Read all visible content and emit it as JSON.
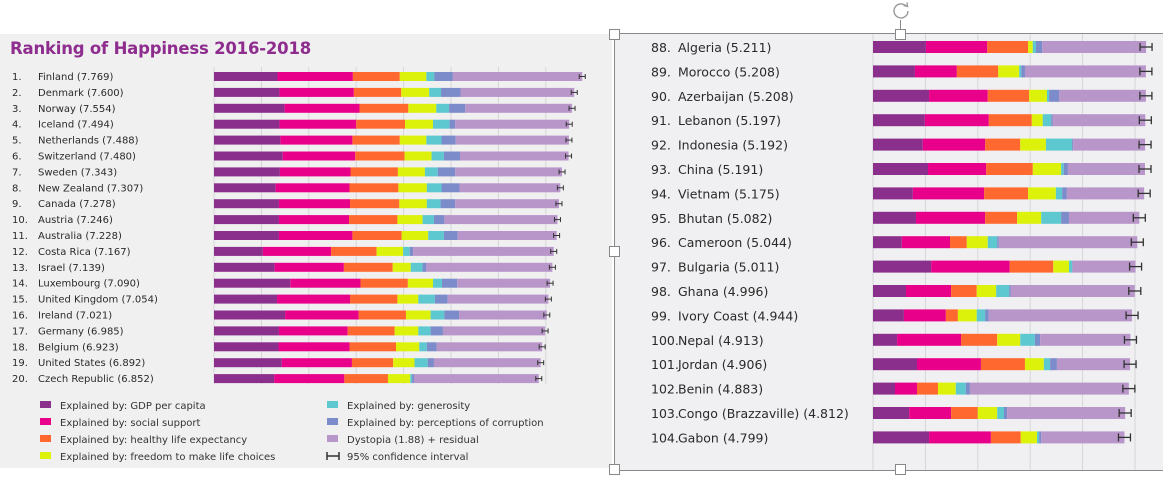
{
  "chart_data": [
    {
      "type": "bar",
      "orientation": "horizontal-stacked",
      "title": "Ranking of Happiness 2016-2018",
      "xlim": [
        0,
        8
      ],
      "grid": true,
      "legend_position": "bottom",
      "segments": [
        "Explained by: GDP per capita",
        "Explained by: social support",
        "Explained by: healthy life expectancy",
        "Explained by: freedom to make life choices",
        "Explained by: generosity",
        "Explained by: perceptions of corruption",
        "Dystopia (1.88) + residual"
      ],
      "rows": [
        {
          "label": "1.",
          "name": "Finland (7.769)",
          "total": 7.769,
          "values": [
            1.34,
            1.59,
            0.99,
            0.56,
            0.17,
            0.39
          ]
        },
        {
          "label": "2.",
          "name": "Denmark (7.600)",
          "total": 7.6,
          "values": [
            1.38,
            1.57,
            1.0,
            0.59,
            0.25,
            0.41
          ]
        },
        {
          "label": "3.",
          "name": "Norway (7.554)",
          "total": 7.554,
          "values": [
            1.49,
            1.58,
            1.03,
            0.59,
            0.27,
            0.34
          ]
        },
        {
          "label": "4.",
          "name": "Iceland (7.494)",
          "total": 7.494,
          "values": [
            1.38,
            1.62,
            1.03,
            0.59,
            0.35,
            0.12
          ]
        },
        {
          "label": "5.",
          "name": "Netherlands (7.488)",
          "total": 7.488,
          "values": [
            1.4,
            1.52,
            1.0,
            0.56,
            0.32,
            0.3
          ]
        },
        {
          "label": "6.",
          "name": "Switzerland (7.480)",
          "total": 7.48,
          "values": [
            1.45,
            1.53,
            1.04,
            0.57,
            0.26,
            0.34
          ]
        },
        {
          "label": "7.",
          "name": "Sweden (7.343)",
          "total": 7.343,
          "values": [
            1.39,
            1.49,
            1.0,
            0.57,
            0.27,
            0.37
          ]
        },
        {
          "label": "8.",
          "name": "New Zealand (7.307)",
          "total": 7.307,
          "values": [
            1.3,
            1.56,
            1.03,
            0.6,
            0.31,
            0.38
          ]
        },
        {
          "label": "9.",
          "name": "Canada (7.278)",
          "total": 7.278,
          "values": [
            1.37,
            1.5,
            1.04,
            0.58,
            0.29,
            0.31
          ]
        },
        {
          "label": "10.",
          "name": "Austria (7.246)",
          "total": 7.246,
          "values": [
            1.37,
            1.48,
            1.02,
            0.53,
            0.24,
            0.22
          ]
        },
        {
          "label": "11.",
          "name": "Australia (7.228)",
          "total": 7.228,
          "values": [
            1.37,
            1.55,
            1.04,
            0.56,
            0.33,
            0.29
          ]
        },
        {
          "label": "12.",
          "name": "Costa Rica (7.167)",
          "total": 7.167,
          "values": [
            1.03,
            1.44,
            0.96,
            0.56,
            0.14,
            0.07
          ]
        },
        {
          "label": "13.",
          "name": "Israel (7.139)",
          "total": 7.139,
          "values": [
            1.28,
            1.46,
            1.03,
            0.38,
            0.25,
            0.08
          ]
        },
        {
          "label": "14.",
          "name": "Luxembourg (7.090)",
          "total": 7.09,
          "values": [
            1.61,
            1.48,
            1.0,
            0.53,
            0.19,
            0.32
          ]
        },
        {
          "label": "15.",
          "name": "United Kingdom (7.054)",
          "total": 7.054,
          "values": [
            1.33,
            1.54,
            1.0,
            0.44,
            0.35,
            0.27
          ]
        },
        {
          "label": "16.",
          "name": "Ireland (7.021)",
          "total": 7.021,
          "values": [
            1.5,
            1.55,
            1.0,
            0.52,
            0.29,
            0.31
          ]
        },
        {
          "label": "17.",
          "name": "Germany (6.985)",
          "total": 6.985,
          "values": [
            1.37,
            1.45,
            0.99,
            0.5,
            0.26,
            0.26
          ]
        },
        {
          "label": "18.",
          "name": "Belgium (6.923)",
          "total": 6.923,
          "values": [
            1.36,
            1.5,
            0.98,
            0.49,
            0.16,
            0.21
          ]
        },
        {
          "label": "19.",
          "name": "United States (6.892)",
          "total": 6.892,
          "values": [
            1.43,
            1.48,
            0.87,
            0.45,
            0.28,
            0.13
          ]
        },
        {
          "label": "20.",
          "name": "Czech Republic (6.852)",
          "total": 6.852,
          "values": [
            1.27,
            1.48,
            0.92,
            0.47,
            0.04,
            0.04
          ]
        }
      ],
      "legend": [
        {
          "label": "Explained by: GDP per capita",
          "color": "#8b2f8c"
        },
        {
          "label": "Explained by: social support",
          "color": "#e8008a"
        },
        {
          "label": "Explained by: healthy life expectancy",
          "color": "#ff6930"
        },
        {
          "label": "Explained by: freedom to make life choices",
          "color": "#dcf20a"
        },
        {
          "label": "Explained by: generosity",
          "color": "#5ec8d0"
        },
        {
          "label": "Explained by: perceptions of corruption",
          "color": "#7c8bc9"
        },
        {
          "label": "Dystopia (1.88) + residual",
          "color": "#b896ca"
        },
        {
          "label": "95% confidence interval",
          "color": "#333333"
        }
      ]
    },
    {
      "type": "bar",
      "orientation": "horizontal-stacked",
      "title": "",
      "xlim": [
        0,
        5.3
      ],
      "grid": true,
      "rows": [
        {
          "label": "88.",
          "name": "Algeria (5.211)",
          "total": 5.211,
          "values": [
            1.01,
            1.17,
            0.78,
            0.09,
            0.06,
            0.12
          ]
        },
        {
          "label": "89.",
          "name": "Morocco (5.208)",
          "total": 5.208,
          "values": [
            0.8,
            0.8,
            0.79,
            0.4,
            0.04,
            0.07
          ]
        },
        {
          "label": "90.",
          "name": "Azerbaijan (5.208)",
          "total": 5.208,
          "values": [
            1.07,
            1.12,
            0.79,
            0.34,
            0.04,
            0.19
          ]
        },
        {
          "label": "91.",
          "name": "Lebanon (5.197)",
          "total": 5.197,
          "values": [
            0.99,
            1.22,
            0.82,
            0.21,
            0.16,
            0.03
          ]
        },
        {
          "label": "92.",
          "name": "Indonesia (5.192)",
          "total": 5.192,
          "values": [
            0.95,
            1.19,
            0.67,
            0.49,
            0.5,
            0.02
          ]
        },
        {
          "label": "93.",
          "name": "China (5.191)",
          "total": 5.191,
          "values": [
            1.05,
            1.11,
            0.89,
            0.54,
            0.05,
            0.08
          ]
        },
        {
          "label": "94.",
          "name": "Vietnam (5.175)",
          "total": 5.175,
          "values": [
            0.76,
            1.36,
            0.84,
            0.53,
            0.12,
            0.09
          ]
        },
        {
          "label": "95.",
          "name": "Bhutan (5.082)",
          "total": 5.082,
          "values": [
            0.82,
            1.32,
            0.61,
            0.46,
            0.38,
            0.15
          ]
        },
        {
          "label": "96.",
          "name": "Cameroon (5.044)",
          "total": 5.044,
          "values": [
            0.55,
            0.92,
            0.32,
            0.4,
            0.18,
            0.03
          ]
        },
        {
          "label": "97.",
          "name": "Bulgaria (5.011)",
          "total": 5.011,
          "values": [
            1.11,
            1.5,
            0.83,
            0.3,
            0.06,
            0.01
          ]
        },
        {
          "label": "98.",
          "name": "Ghana (4.996)",
          "total": 4.996,
          "values": [
            0.63,
            0.86,
            0.49,
            0.37,
            0.25,
            0.03
          ]
        },
        {
          "label": "99.",
          "name": "Ivory Coast (4.944)",
          "total": 4.944,
          "values": [
            0.59,
            0.8,
            0.23,
            0.36,
            0.16,
            0.07
          ]
        },
        {
          "label": "100.",
          "name": "Nepal (4.913)",
          "total": 4.913,
          "values": [
            0.46,
            1.22,
            0.69,
            0.44,
            0.28,
            0.1
          ]
        },
        {
          "label": "101.",
          "name": "Jordan (4.906)",
          "total": 4.906,
          "values": [
            0.84,
            1.22,
            0.84,
            0.36,
            0.12,
            0.13
          ]
        },
        {
          "label": "102.",
          "name": "Benin (4.883)",
          "total": 4.883,
          "values": [
            0.42,
            0.42,
            0.4,
            0.34,
            0.19,
            0.08
          ]
        },
        {
          "label": "103.",
          "name": "Congo (Brazzaville) (4.812)",
          "total": 4.812,
          "values": [
            0.69,
            0.8,
            0.51,
            0.37,
            0.13,
            0.06
          ]
        },
        {
          "label": "104.",
          "name": "Gabon (4.799)",
          "total": 4.799,
          "values": [
            1.07,
            1.18,
            0.57,
            0.31,
            0.04,
            0.04
          ]
        }
      ]
    }
  ],
  "colors": [
    "#8b2f8c",
    "#e8008a",
    "#ff6930",
    "#dcf20a",
    "#5ec8d0",
    "#7c8bc9",
    "#b896ca"
  ]
}
